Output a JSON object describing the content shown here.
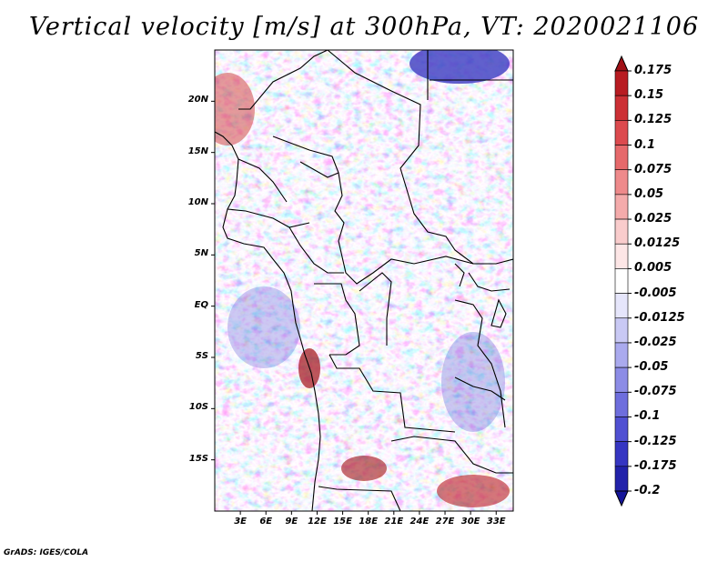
{
  "title": "Vertical velocity [m/s] at 300hPa, VT: 2020021106",
  "credit": "GrADS: IGES/COLA",
  "map": {
    "lat_labels": [
      "20N",
      "15N",
      "10N",
      "5N",
      "EQ",
      "5S",
      "10S",
      "15S"
    ],
    "lat_values": [
      20,
      15,
      10,
      5,
      0,
      -5,
      -10,
      -15
    ],
    "lon_labels": [
      "3E",
      "6E",
      "9E",
      "12E",
      "15E",
      "18E",
      "21E",
      "24E",
      "27E",
      "30E",
      "33E"
    ],
    "lon_values": [
      3,
      6,
      9,
      12,
      15,
      18,
      21,
      24,
      27,
      30,
      33
    ],
    "extent": {
      "lon_min": 0,
      "lon_max": 35,
      "lat_min": -20,
      "lat_max": 25
    }
  },
  "colorbar": {
    "labels": [
      "0.175",
      "0.15",
      "0.125",
      "0.1",
      "0.075",
      "0.05",
      "0.025",
      "0.0125",
      "0.005",
      "-0.005",
      "-0.0125",
      "-0.025",
      "-0.05",
      "-0.075",
      "-0.1",
      "-0.125",
      "-0.175",
      "-0.2"
    ],
    "colors": [
      "#a01016",
      "#b81c22",
      "#cc3035",
      "#dc4a4e",
      "#e6696b",
      "#ee8a8b",
      "#f4abab",
      "#f9cccc",
      "#fde6e6",
      "#ffffff",
      "#e6e6fb",
      "#c9c9f4",
      "#aaaaee",
      "#8c8ce6",
      "#6e6edd",
      "#5050d2",
      "#3636c2",
      "#2222aa",
      "#16169a"
    ]
  }
}
